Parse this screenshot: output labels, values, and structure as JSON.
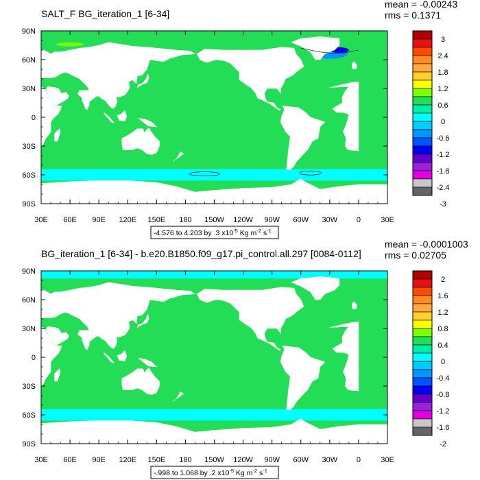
{
  "chart_data": [
    {
      "type": "heatmap",
      "title": "SALT_F BG_iteration_1 [6-34]",
      "stats": [
        "mean = -0.00243",
        "rms = 0.1371"
      ],
      "xlabel": "",
      "ylabel": "",
      "x_ticks": [
        "30E",
        "60E",
        "90E",
        "120E",
        "150E",
        "180",
        "150W",
        "120W",
        "90W",
        "60W",
        "30W",
        "0",
        "30E"
      ],
      "y_ticks": [
        "90N",
        "60N",
        "30N",
        "0",
        "30S",
        "60S",
        "90S"
      ],
      "contour_info": "-4.576 to 4.203 by .3 x10",
      "units": {
        "exp": "-5",
        "kg": "Kg m",
        "m_exp": "-2",
        "s": "s",
        "s_exp": "-1"
      },
      "colorbar_labels": [
        "3",
        "2.4",
        "1.8",
        "1.2",
        "0.6",
        "0",
        "-0.6",
        "-1.2",
        "-1.8",
        "-2.4",
        "-3"
      ],
      "colorbar_colors": [
        "#B00000",
        "#E81010",
        "#FF4A00",
        "#FF8A20",
        "#FFAA40",
        "#FFD030",
        "#FFFF00",
        "#7CFF00",
        "#22DD55",
        "#00EEAA",
        "#00FFFF",
        "#00CCFF",
        "#0096FF",
        "#0055FF",
        "#0000EE",
        "#6600CC",
        "#9922DD",
        "#E000E0",
        "#C8C8C8",
        "#646464"
      ],
      "ocean_color": "#22DD55",
      "southern_band_color": "#00FFFF"
    },
    {
      "type": "heatmap",
      "title": "BG_iteration_1 [6-34] - b.e20.B1850.f09_g17.pi_control.all.297 [0084-0112]",
      "stats": [
        "mean = -0.0001003",
        "rms = 0.02705"
      ],
      "xlabel": "",
      "ylabel": "",
      "x_ticks": [
        "30E",
        "60E",
        "90E",
        "120E",
        "150E",
        "180",
        "150W",
        "120W",
        "90W",
        "60W",
        "30W",
        "0",
        "30E"
      ],
      "y_ticks": [
        "90N",
        "60N",
        "30N",
        "0",
        "30S",
        "60S",
        "90S"
      ],
      "contour_info": "-.998 to 1.068 by .2 x10",
      "units": {
        "exp": "-5",
        "kg": "Kg m",
        "m_exp": "-2",
        "s": "s",
        "s_exp": "-1"
      },
      "colorbar_labels": [
        "2",
        "1.6",
        "1.2",
        "0.8",
        "0.4",
        "0",
        "-0.4",
        "-0.8",
        "-1.2",
        "-1.6",
        "-2"
      ],
      "colorbar_colors": [
        "#B00000",
        "#E81010",
        "#FF4A00",
        "#FF8A20",
        "#FFAA40",
        "#FFD030",
        "#FFFF00",
        "#7CFF00",
        "#22DD55",
        "#00EEAA",
        "#00FFFF",
        "#00CCFF",
        "#0096FF",
        "#0055FF",
        "#0000EE",
        "#6600CC",
        "#9922DD",
        "#E000E0",
        "#C8C8C8",
        "#646464"
      ],
      "ocean_color": "#22DD55",
      "southern_band_color": "#00FFFF"
    }
  ]
}
